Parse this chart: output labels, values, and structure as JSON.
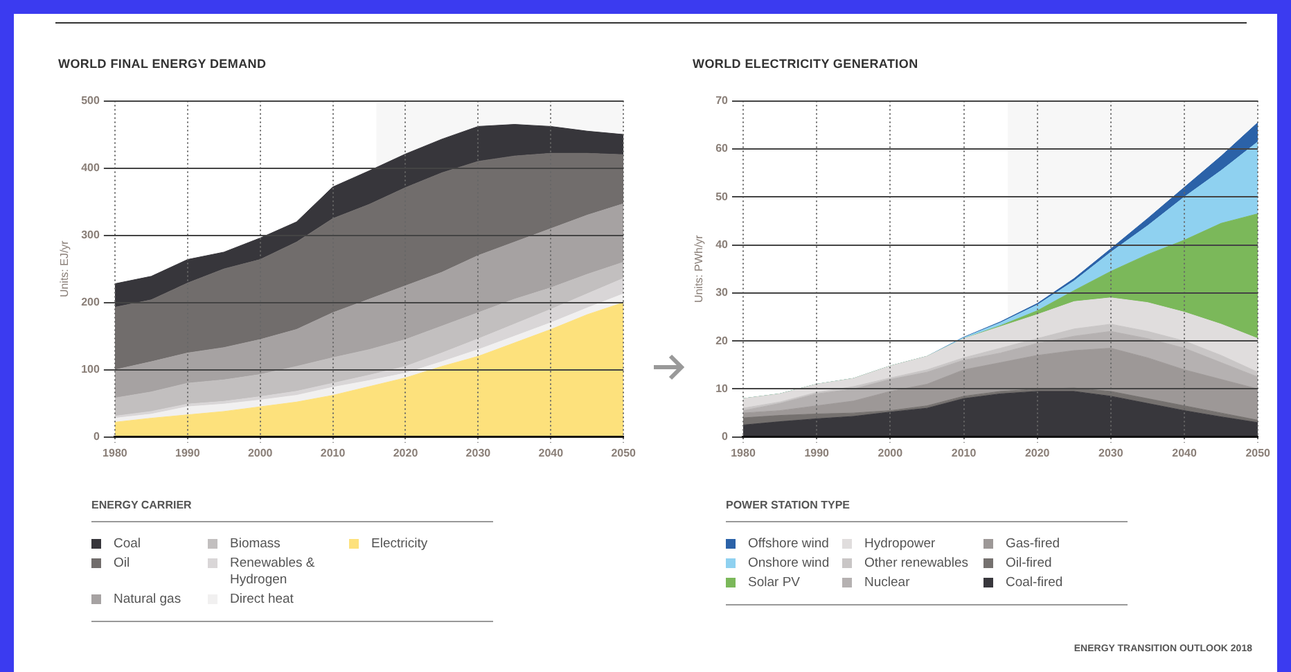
{
  "chart_data": [
    {
      "type": "area",
      "title": "WORLD FINAL ENERGY DEMAND",
      "ylabel": "Units: EJ/yr",
      "legend_title": "ENERGY CARRIER",
      "legend": "bottom",
      "grid": true,
      "stacked": true,
      "x": [
        1980,
        1985,
        1990,
        1995,
        2000,
        2005,
        2010,
        2015,
        2020,
        2025,
        2030,
        2035,
        2040,
        2045,
        2050
      ],
      "xlim": [
        1980,
        2050
      ],
      "xticks": [
        1980,
        1990,
        2000,
        2010,
        2020,
        2030,
        2040,
        2050
      ],
      "ylim": [
        0,
        500
      ],
      "yticks": [
        0,
        100,
        200,
        300,
        400,
        500
      ],
      "bands": [
        {
          "axis": "x",
          "from": 2016,
          "to": 2050,
          "color": "#f7f7f7"
        }
      ],
      "series": [
        {
          "name": "Electricity",
          "color": "#fde17c",
          "values": [
            22,
            28,
            33,
            38,
            45,
            52,
            62,
            75,
            88,
            105,
            120,
            140,
            160,
            182,
            200
          ]
        },
        {
          "name": "Direct heat",
          "color": "#f1f0f0",
          "values": [
            6,
            6,
            12,
            11,
            10,
            10,
            12,
            9,
            7,
            7,
            10,
            10,
            10,
            10,
            13
          ]
        },
        {
          "name": "Renewables & Hydrogen",
          "color": "#d9d6d7",
          "values": [
            3,
            4,
            4,
            4,
            5,
            6,
            6,
            8,
            10,
            13,
            16,
            18,
            20,
            21,
            23
          ]
        },
        {
          "name": "Biomass",
          "color": "#c2bfbf",
          "values": [
            27,
            29,
            31,
            32,
            33,
            37,
            38,
            38,
            40,
            40,
            39,
            37,
            32,
            29,
            24
          ]
        },
        {
          "name": "Natural gas",
          "color": "#a6a2a2",
          "values": [
            42,
            45,
            45,
            48,
            52,
            55,
            67,
            75,
            80,
            80,
            85,
            85,
            88,
            88,
            87
          ]
        },
        {
          "name": "Oil",
          "color": "#716d6c",
          "values": [
            93,
            92,
            104,
            117,
            119,
            130,
            140,
            141,
            146,
            148,
            140,
            128,
            112,
            92,
            73
          ]
        },
        {
          "name": "Coal",
          "color": "#37363b",
          "values": [
            35,
            35,
            35,
            25,
            32,
            30,
            47,
            50,
            50,
            50,
            52,
            47,
            40,
            33,
            30
          ]
        }
      ]
    },
    {
      "type": "area",
      "title": "WORLD ELECTRICITY GENERATION",
      "ylabel": "Units: PWh/yr",
      "legend_title": "POWER STATION TYPE",
      "legend": "bottom",
      "grid": true,
      "stacked": true,
      "x": [
        1980,
        1985,
        1990,
        1995,
        2000,
        2005,
        2010,
        2015,
        2020,
        2025,
        2030,
        2035,
        2040,
        2045,
        2050
      ],
      "xlim": [
        1980,
        2050
      ],
      "xticks": [
        1980,
        1990,
        2000,
        2010,
        2020,
        2030,
        2040,
        2050
      ],
      "ylim": [
        0,
        70
      ],
      "yticks": [
        0,
        10,
        20,
        30,
        40,
        50,
        60,
        70
      ],
      "bands": [
        {
          "axis": "x",
          "from": 2016,
          "to": 2050,
          "color": "#f7f7f7"
        }
      ],
      "annotations": [
        "ENERGY TRANSITION OUTLOOK 2018"
      ],
      "series": [
        {
          "name": "Coal-fired",
          "color": "#38373c",
          "values": [
            2.5,
            3.2,
            3.8,
            4.3,
            5.2,
            6,
            8,
            9,
            9.5,
            9.5,
            8.5,
            7,
            5.5,
            4.2,
            3
          ]
        },
        {
          "name": "Oil-fired",
          "color": "#75716f",
          "values": [
            1.5,
            1.3,
            1,
            0.7,
            0.3,
            0.5,
            0.5,
            0.5,
            0.5,
            0.7,
            1,
            1,
            1,
            0.8,
            0.5
          ]
        },
        {
          "name": "Gas-fired",
          "color": "#9d9897",
          "values": [
            1,
            1,
            1.7,
            2.5,
            4,
            4.5,
            5.5,
            6,
            7,
            7.8,
            9,
            8.5,
            7.5,
            7,
            6.5
          ]
        },
        {
          "name": "Nuclear",
          "color": "#b5b1b1",
          "values": [
            0.5,
            1.5,
            2.5,
            2.5,
            2.5,
            2.5,
            2,
            2,
            2.5,
            3,
            3.5,
            4,
            4.5,
            3.5,
            2.5
          ]
        },
        {
          "name": "Other renewables",
          "color": "#c9c6c6",
          "values": [
            0.5,
            0.3,
            0.3,
            0.5,
            0.3,
            0.5,
            0.5,
            1,
            1,
            1.5,
            1.5,
            1.5,
            1.5,
            1.5,
            1
          ]
        },
        {
          "name": "Hydropower",
          "color": "#e0dddd",
          "values": [
            2,
            1.7,
            1.7,
            1.7,
            2.5,
            2.8,
            4,
            4.5,
            5,
            5.7,
            5.5,
            6,
            6,
            6.5,
            7
          ]
        },
        {
          "name": "Solar PV",
          "color": "#7bb85a",
          "values": [
            0,
            0,
            0,
            0,
            0,
            0,
            0,
            0.2,
            0.8,
            2.3,
            5.5,
            10,
            15,
            21,
            26
          ]
        },
        {
          "name": "Onshore wind",
          "color": "#8fd1f0",
          "values": [
            0,
            0,
            0,
            0,
            0,
            0,
            0.2,
            0.6,
            1.2,
            2,
            4,
            6,
            9,
            11,
            15
          ]
        },
        {
          "name": "Offshore wind",
          "color": "#2b62a8",
          "values": [
            0,
            0,
            0,
            0,
            0,
            0,
            0.1,
            0.2,
            0.3,
            0.5,
            0.7,
            1.5,
            2,
            3,
            4
          ]
        }
      ]
    }
  ]
}
